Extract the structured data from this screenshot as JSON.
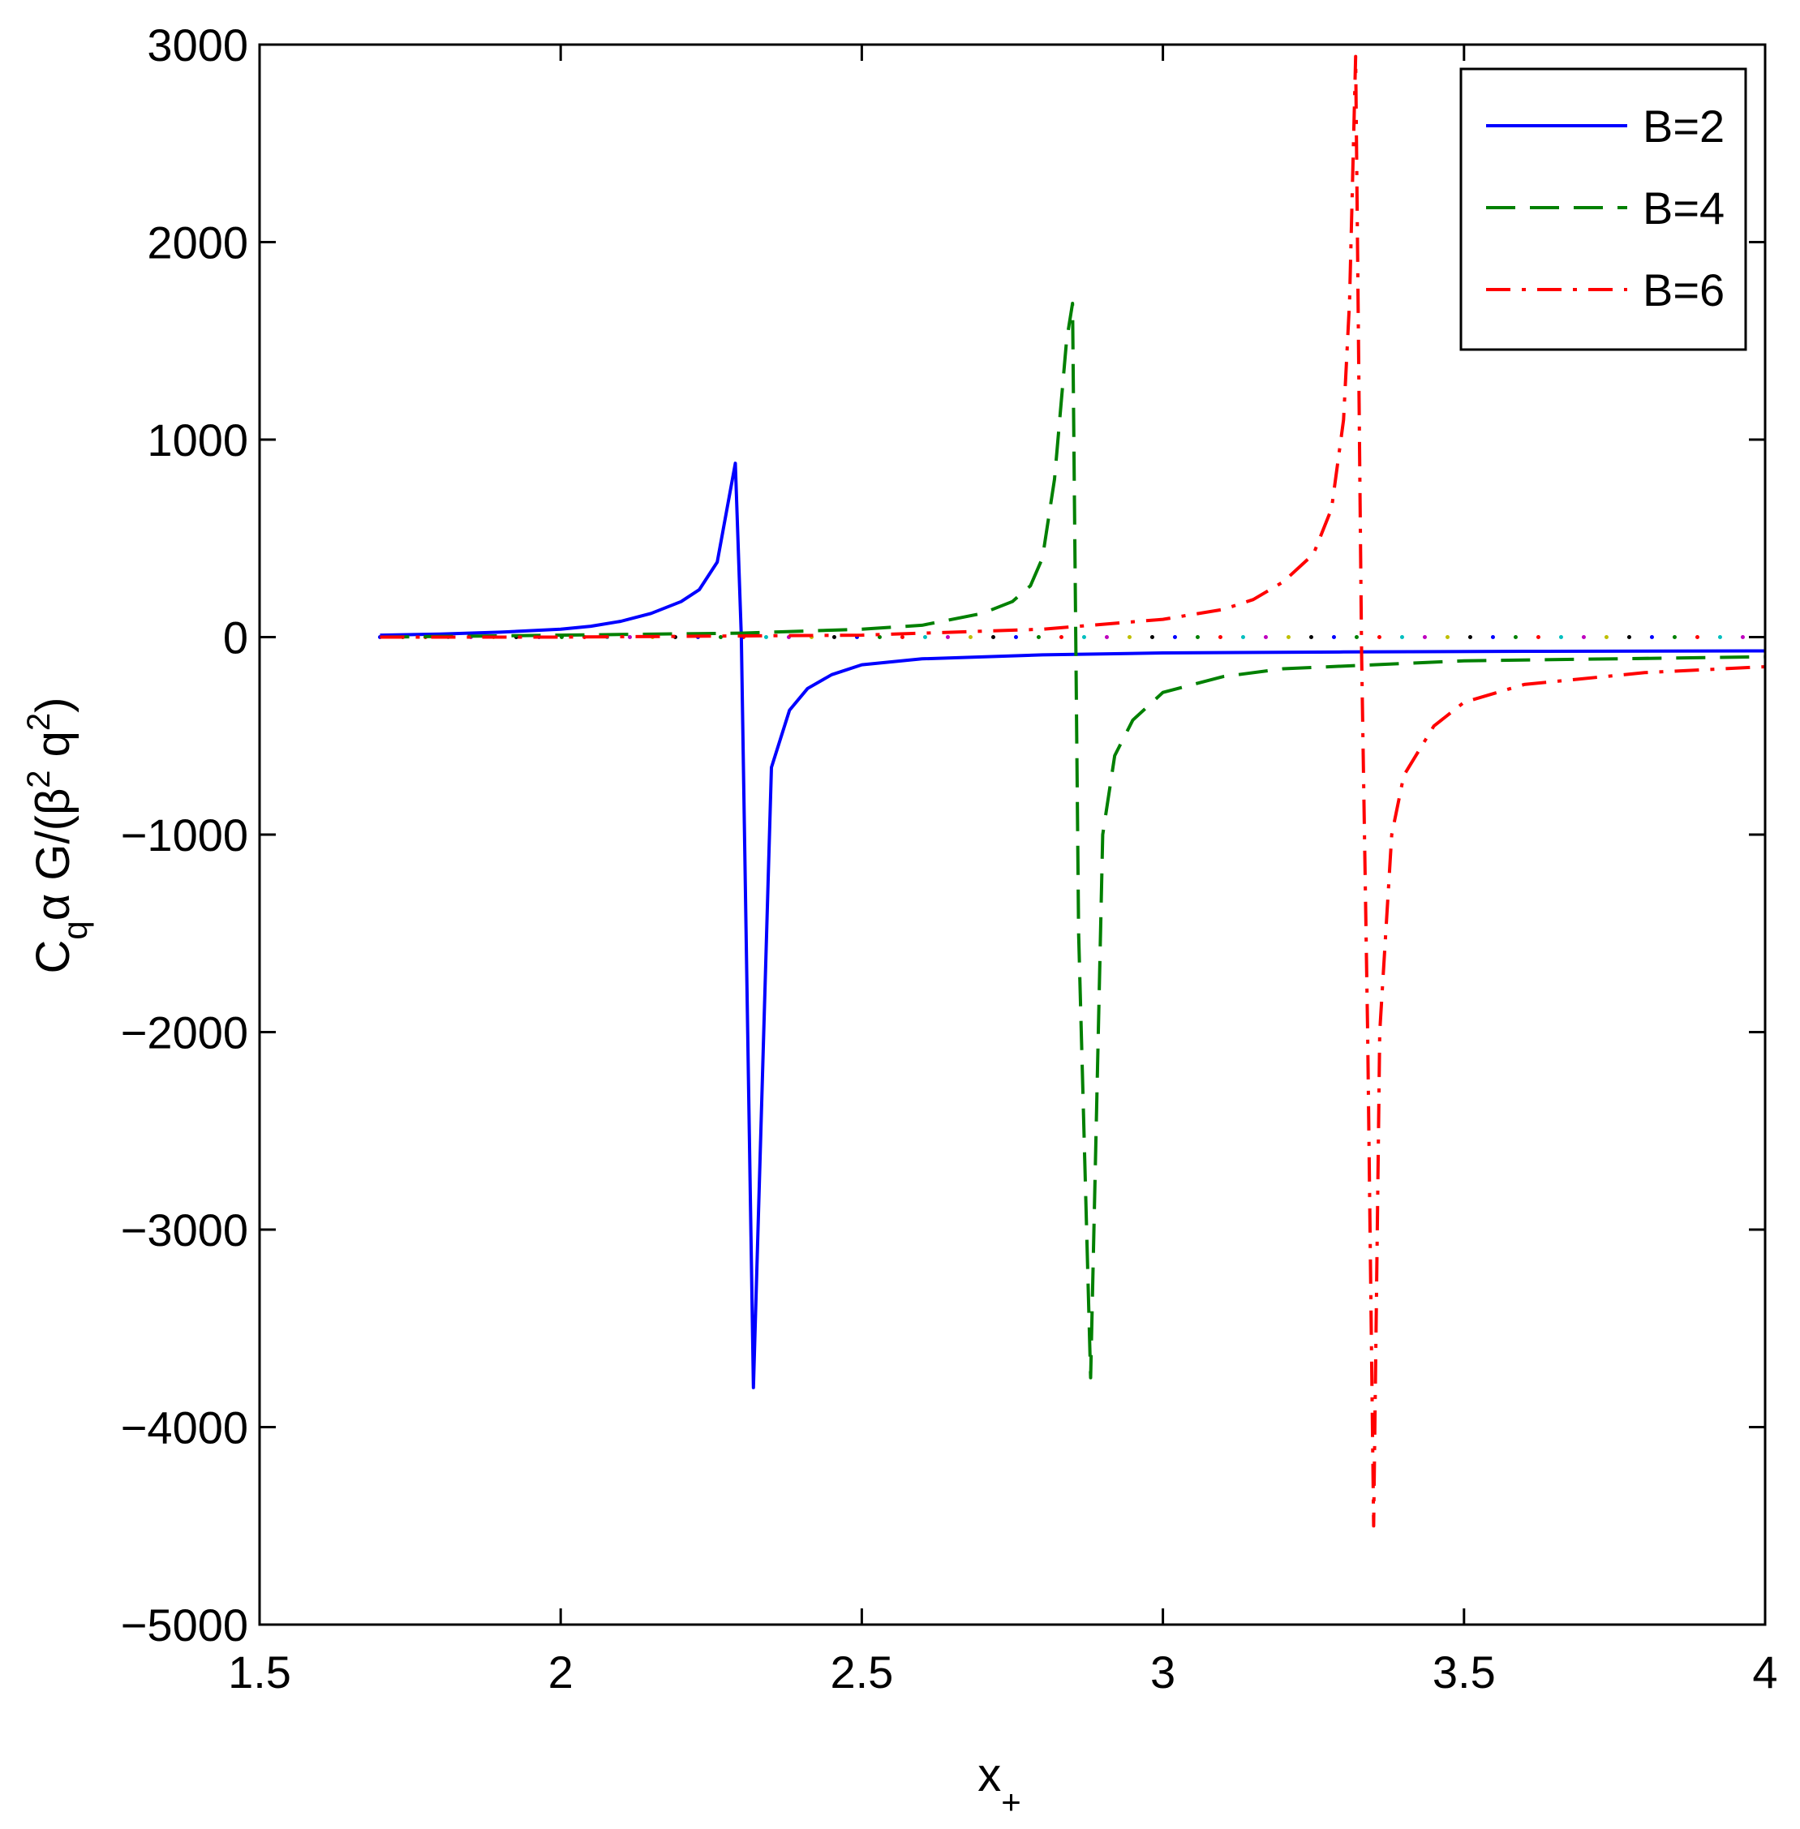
{
  "chart_data": {
    "type": "line",
    "xlabel": "x",
    "xlabel_sub": "+",
    "ylabel_parts": {
      "c": "C",
      "q": "q",
      "mid": "α G/(β",
      "sup1": "2",
      "q2": " q",
      "sup2": "2",
      "end": ")"
    },
    "xlim": [
      1.5,
      4
    ],
    "ylim": [
      -5000,
      3000
    ],
    "xticks": [
      1.5,
      2,
      2.5,
      3,
      3.5,
      4
    ],
    "xtick_labels": [
      "1.5",
      "2",
      "2.5",
      "3",
      "3.5",
      "4"
    ],
    "yticks": [
      -5000,
      -4000,
      -3000,
      -2000,
      -1000,
      0,
      1000,
      2000,
      3000
    ],
    "ytick_labels": [
      "−5000",
      "−4000",
      "−3000",
      "−2000",
      "−1000",
      "0",
      "1000",
      "2000",
      "3000"
    ],
    "grid": false,
    "legend_position": "top-right",
    "zero_line": {
      "y": 0,
      "x_from": 1.7,
      "x_to": 4,
      "style": "dotted multicolor"
    },
    "series": [
      {
        "name": "B=2",
        "color": "#0000ff",
        "dash": "solid",
        "x": [
          1.7,
          1.8,
          1.9,
          2.0,
          2.05,
          2.1,
          2.15,
          2.2,
          2.23,
          2.26,
          2.29,
          2.3,
          2.32,
          2.35,
          2.38,
          2.41,
          2.45,
          2.5,
          2.6,
          2.8,
          3.0,
          3.3,
          3.6,
          4.0
        ],
        "y": [
          10,
          15,
          25,
          40,
          55,
          80,
          120,
          180,
          240,
          380,
          880,
          0,
          -3800,
          -660,
          -370,
          -260,
          -190,
          -140,
          -110,
          -90,
          -80,
          -75,
          -72,
          -70
        ]
      },
      {
        "name": "B=4",
        "color": "#008000",
        "dash": "dashed",
        "x": [
          1.7,
          2.0,
          2.3,
          2.5,
          2.6,
          2.7,
          2.75,
          2.78,
          2.8,
          2.82,
          2.84,
          2.85,
          2.86,
          2.88,
          2.9,
          2.92,
          2.95,
          3.0,
          3.1,
          3.2,
          3.5,
          4.0
        ],
        "y": [
          0,
          10,
          20,
          40,
          60,
          120,
          180,
          260,
          400,
          800,
          1500,
          1690,
          -1500,
          -3750,
          -1000,
          -600,
          -420,
          -280,
          -200,
          -160,
          -120,
          -100
        ]
      },
      {
        "name": "B=6",
        "color": "#ff0000",
        "dash": "dashdot",
        "x": [
          1.7,
          2.0,
          2.5,
          2.8,
          3.0,
          3.1,
          3.15,
          3.2,
          3.25,
          3.28,
          3.3,
          3.31,
          3.32,
          3.33,
          3.34,
          3.35,
          3.36,
          3.38,
          3.4,
          3.45,
          3.5,
          3.6,
          3.8,
          4.0
        ],
        "y": [
          0,
          0,
          10,
          40,
          90,
          140,
          190,
          280,
          420,
          650,
          1100,
          1700,
          2940,
          -100,
          -2000,
          -4500,
          -2000,
          -1000,
          -700,
          -450,
          -330,
          -240,
          -180,
          -150
        ]
      }
    ]
  }
}
